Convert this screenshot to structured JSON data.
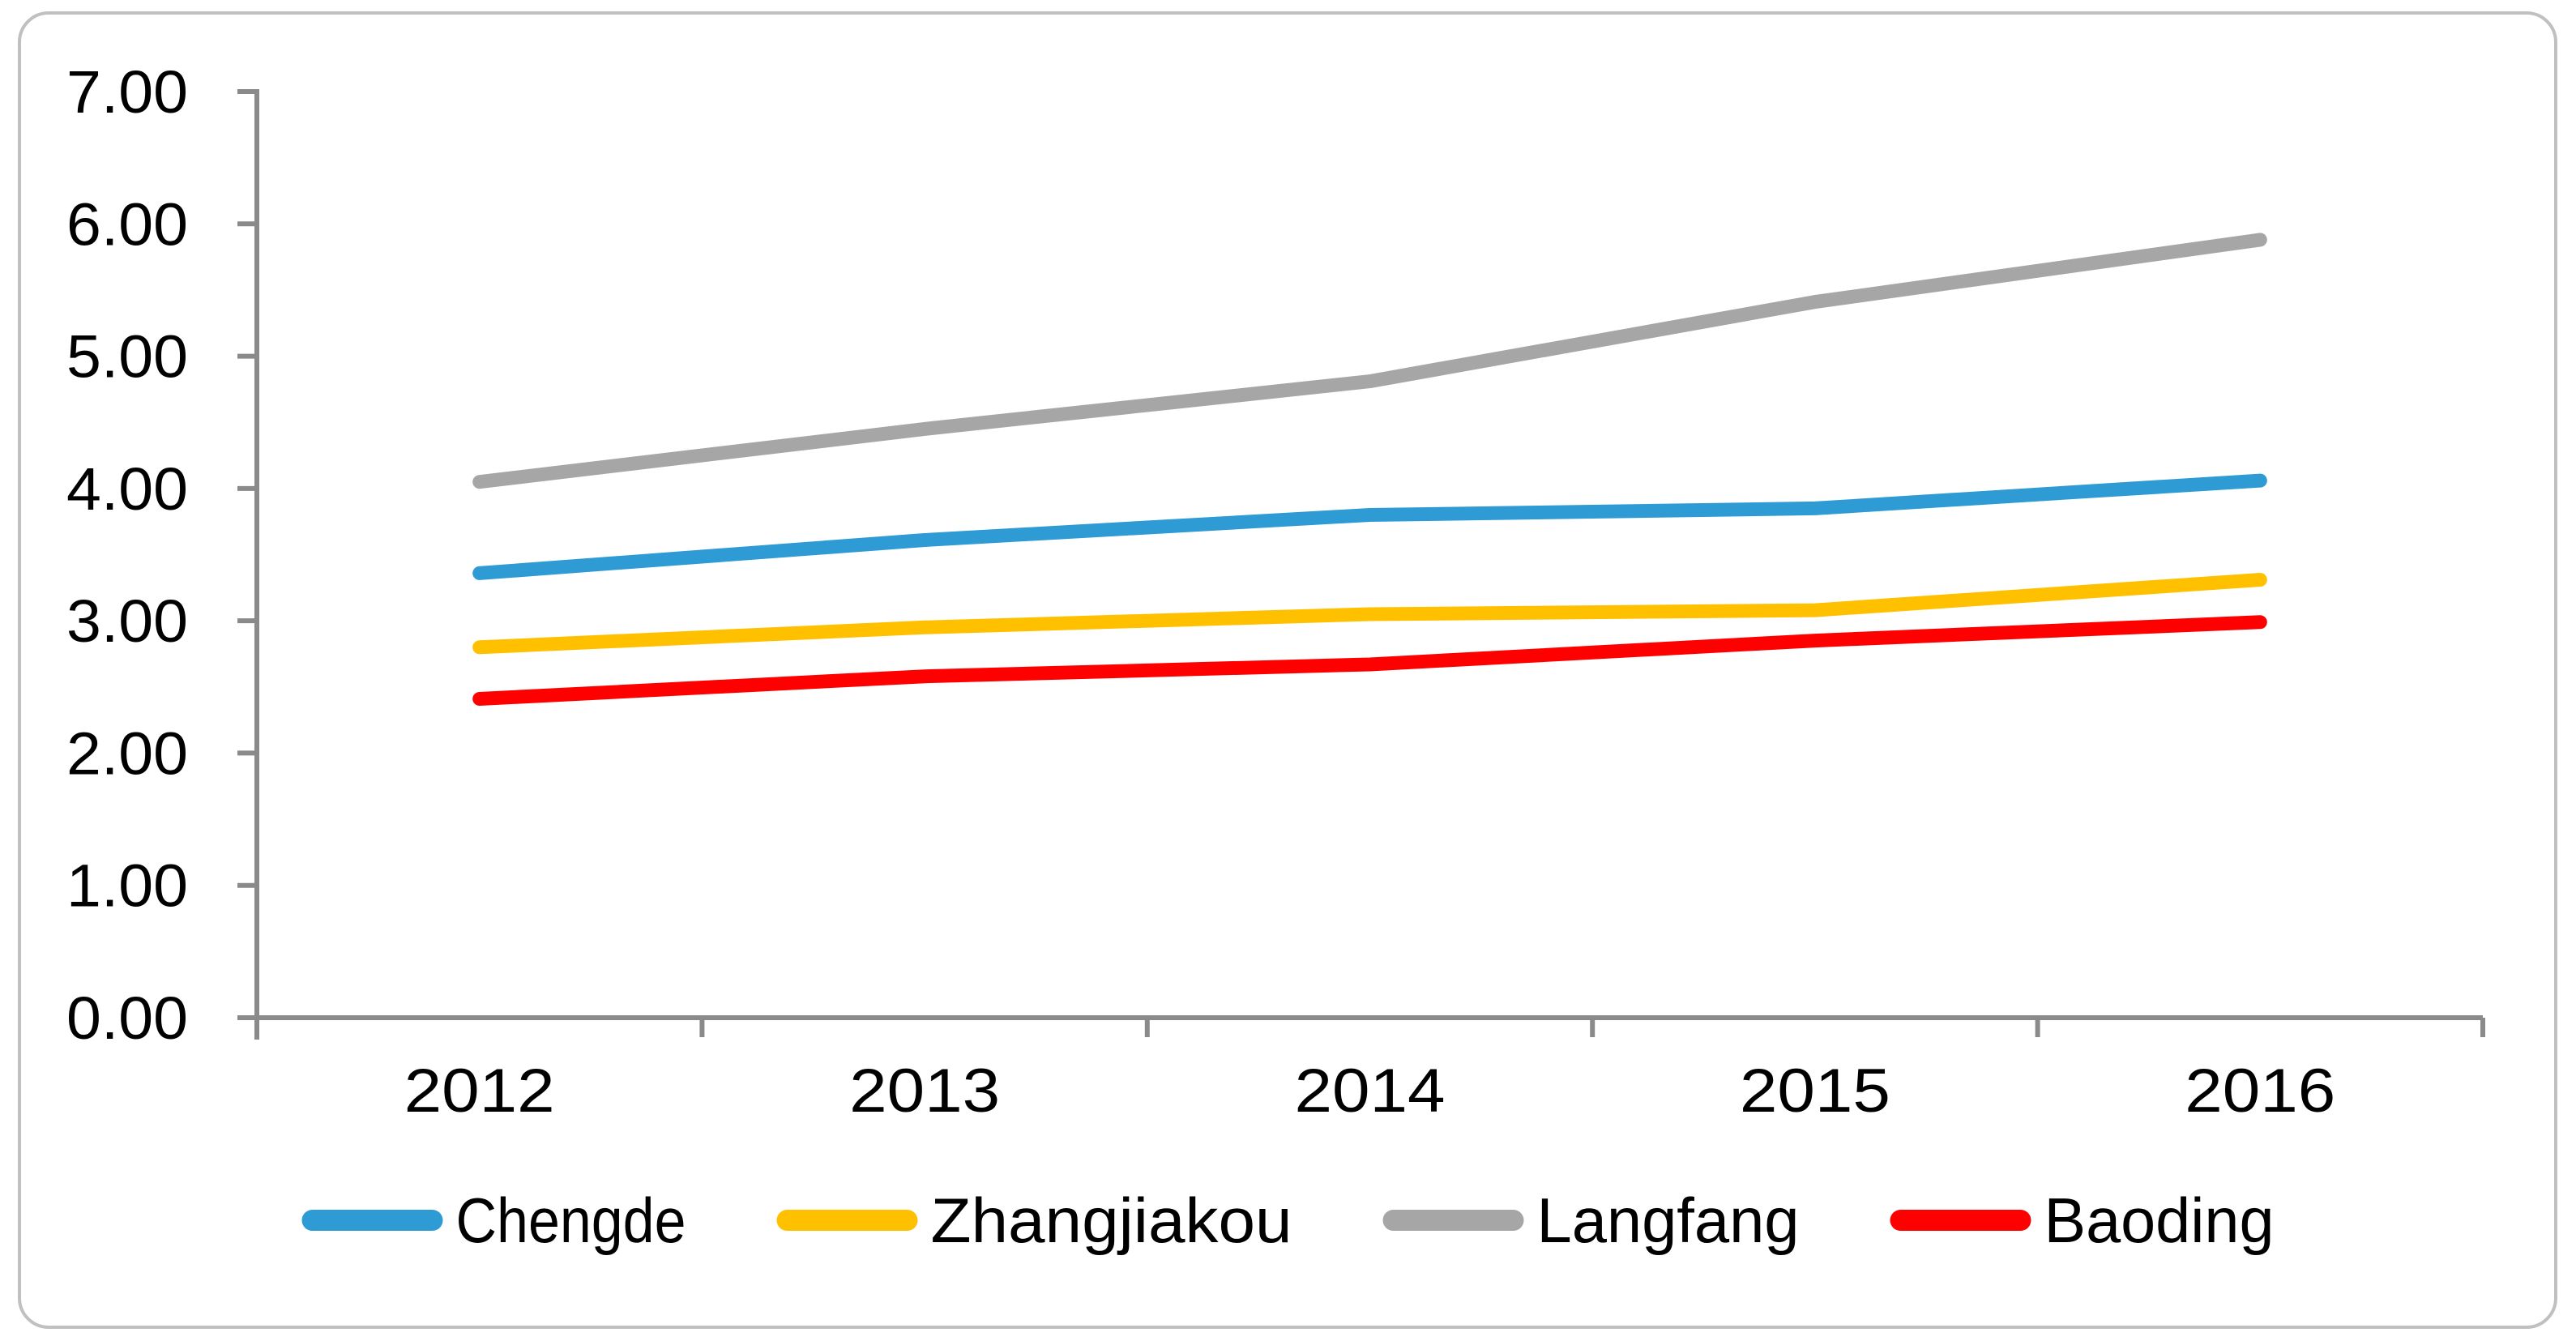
{
  "chart_data": {
    "type": "line",
    "title": "",
    "xlabel": "",
    "ylabel": "",
    "categories": [
      "2012",
      "2013",
      "2014",
      "2015",
      "2016"
    ],
    "series": [
      {
        "name": "Chengde",
        "color": "#2E9BD5",
        "values": [
          3.36,
          3.61,
          3.8,
          3.85,
          4.06
        ]
      },
      {
        "name": "Zhangjiakou",
        "color": "#FFC000",
        "values": [
          2.8,
          2.95,
          3.05,
          3.08,
          3.31
        ]
      },
      {
        "name": "Langfang",
        "color": "#A6A6A6",
        "values": [
          4.05,
          4.45,
          4.81,
          5.41,
          5.88
        ]
      },
      {
        "name": "Baoding",
        "color": "#FF0000",
        "values": [
          2.41,
          2.58,
          2.67,
          2.85,
          2.99
        ]
      }
    ],
    "ylim": [
      0,
      7
    ],
    "ytick_step": 1,
    "ytick_labels": [
      "0.00",
      "1.00",
      "2.00",
      "3.00",
      "4.00",
      "5.00",
      "6.00",
      "7.00"
    ],
    "grid": false,
    "legend_position": "bottom",
    "legend_items": [
      "Chengde",
      "Zhangjiakou",
      "Langfang",
      "Baoding"
    ],
    "axis_color": "#8A8A8A",
    "border_color": "#C0C0C0",
    "text_color": "#000000",
    "background": "#FFFFFF"
  }
}
